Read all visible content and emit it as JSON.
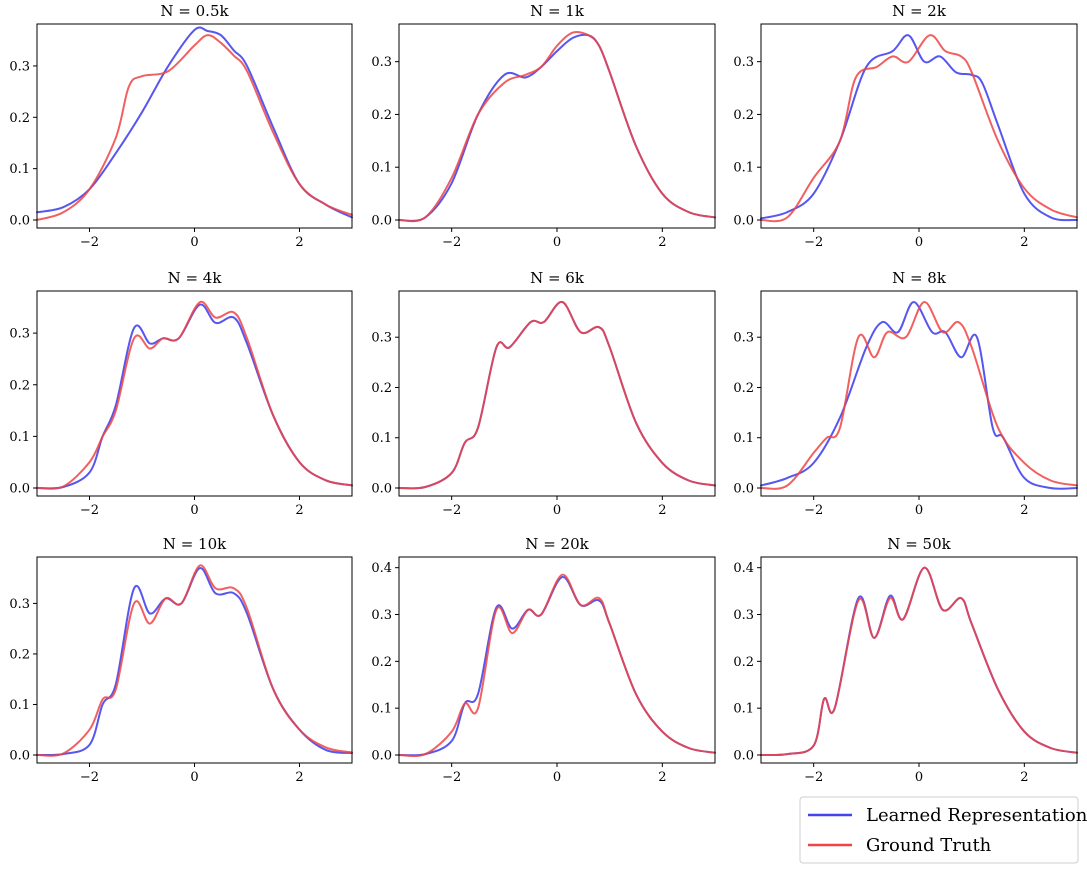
{
  "chart_data": [
    {
      "type": "line",
      "title": "N = 0.5k",
      "xlim": [
        -3,
        3
      ],
      "ylim": [
        0,
        0.37
      ],
      "xticks": [
        -2,
        0,
        2
      ],
      "xtick_labels": [
        "−2",
        "0",
        "2"
      ],
      "yticks": [
        0,
        0.1,
        0.2,
        0.3
      ],
      "ytick_labels": [
        "0.0",
        "0.1",
        "0.2",
        "0.3"
      ],
      "series": [
        {
          "name": "Learned Representation",
          "color": "#4444ee",
          "x": [
            -3,
            -2.5,
            -2,
            -1.5,
            -1,
            -0.5,
            0,
            0.25,
            0.5,
            0.75,
            1,
            1.5,
            2,
            2.5,
            3
          ],
          "y": [
            0.015,
            0.025,
            0.06,
            0.13,
            0.21,
            0.3,
            0.37,
            0.368,
            0.36,
            0.33,
            0.3,
            0.18,
            0.07,
            0.03,
            0.005
          ]
        },
        {
          "name": "Ground Truth",
          "color": "#ee4444",
          "x": [
            -3,
            -2.5,
            -2,
            -1.5,
            -1.25,
            -1,
            -0.5,
            0,
            0.25,
            0.5,
            0.75,
            1,
            1.5,
            2,
            2.5,
            3
          ],
          "y": [
            0.0,
            0.015,
            0.06,
            0.16,
            0.26,
            0.28,
            0.29,
            0.34,
            0.36,
            0.345,
            0.32,
            0.29,
            0.17,
            0.07,
            0.03,
            0.01
          ]
        }
      ]
    },
    {
      "type": "line",
      "title": "N = 1k",
      "xlim": [
        -3,
        3
      ],
      "ylim": [
        0,
        0.36
      ],
      "xticks": [
        -2,
        0,
        2
      ],
      "xtick_labels": [
        "−2",
        "0",
        "2"
      ],
      "yticks": [
        0,
        0.1,
        0.2,
        0.3
      ],
      "ytick_labels": [
        "0.0",
        "0.1",
        "0.2",
        "0.3"
      ],
      "series": [
        {
          "name": "Learned Representation",
          "color": "#4444ee",
          "x": [
            -3,
            -2.5,
            -2,
            -1.5,
            -1,
            -0.6,
            -0.3,
            0,
            0.3,
            0.6,
            0.8,
            1,
            1.5,
            2,
            2.5,
            3
          ],
          "y": [
            0.0,
            0.005,
            0.07,
            0.2,
            0.275,
            0.27,
            0.29,
            0.32,
            0.345,
            0.35,
            0.33,
            0.28,
            0.14,
            0.05,
            0.015,
            0.005
          ]
        },
        {
          "name": "Ground Truth",
          "color": "#ee4444",
          "x": [
            -3,
            -2.5,
            -2,
            -1.5,
            -1,
            -0.6,
            -0.3,
            0,
            0.3,
            0.6,
            0.8,
            1,
            1.5,
            2,
            2.5,
            3
          ],
          "y": [
            0.0,
            0.005,
            0.08,
            0.2,
            0.26,
            0.275,
            0.29,
            0.33,
            0.355,
            0.35,
            0.33,
            0.28,
            0.14,
            0.05,
            0.015,
            0.005
          ]
        }
      ]
    },
    {
      "type": "line",
      "title": "N = 2k",
      "xlim": [
        -3,
        3
      ],
      "ylim": [
        0,
        0.36
      ],
      "xticks": [
        -2,
        0,
        2
      ],
      "xtick_labels": [
        "−2",
        "0",
        "2"
      ],
      "yticks": [
        0,
        0.1,
        0.2,
        0.3
      ],
      "ytick_labels": [
        "0.0",
        "0.1",
        "0.2",
        "0.3"
      ],
      "series": [
        {
          "name": "Learned Representation",
          "color": "#4444ee",
          "x": [
            -3,
            -2.5,
            -2,
            -1.5,
            -1,
            -0.5,
            -0.2,
            0.1,
            0.4,
            0.7,
            1,
            1.2,
            1.5,
            2,
            2.5,
            3
          ],
          "y": [
            0.003,
            0.015,
            0.05,
            0.15,
            0.29,
            0.32,
            0.35,
            0.3,
            0.31,
            0.28,
            0.275,
            0.26,
            0.18,
            0.05,
            0.005,
            0.0
          ]
        },
        {
          "name": "Ground Truth",
          "color": "#ee4444",
          "x": [
            -3,
            -2.5,
            -2,
            -1.5,
            -1.2,
            -0.8,
            -0.5,
            -0.2,
            0.2,
            0.5,
            0.8,
            1,
            1.5,
            2,
            2.5,
            3
          ],
          "y": [
            0.0,
            0.005,
            0.08,
            0.15,
            0.27,
            0.29,
            0.31,
            0.3,
            0.35,
            0.32,
            0.31,
            0.28,
            0.15,
            0.06,
            0.02,
            0.005
          ]
        }
      ]
    },
    {
      "type": "line",
      "title": "N = 4k",
      "xlim": [
        -3,
        3
      ],
      "ylim": [
        0,
        0.37
      ],
      "xticks": [
        -2,
        0,
        2
      ],
      "xtick_labels": [
        "−2",
        "0",
        "2"
      ],
      "yticks": [
        0,
        0.1,
        0.2,
        0.3
      ],
      "ytick_labels": [
        "0.0",
        "0.1",
        "0.2",
        "0.3"
      ],
      "series": [
        {
          "name": "Learned Representation",
          "color": "#4444ee",
          "x": [
            -3,
            -2.5,
            -2,
            -1.75,
            -1.5,
            -1.15,
            -0.85,
            -0.6,
            -0.3,
            0.1,
            0.4,
            0.75,
            1,
            1.5,
            2,
            2.5,
            3
          ],
          "y": [
            0.0,
            0.002,
            0.03,
            0.1,
            0.16,
            0.31,
            0.28,
            0.29,
            0.29,
            0.355,
            0.32,
            0.33,
            0.28,
            0.14,
            0.05,
            0.015,
            0.005
          ]
        },
        {
          "name": "Ground Truth",
          "color": "#ee4444",
          "x": [
            -3,
            -2.5,
            -2,
            -1.75,
            -1.5,
            -1.15,
            -0.85,
            -0.6,
            -0.3,
            0.1,
            0.4,
            0.75,
            1,
            1.5,
            2,
            2.5,
            3
          ],
          "y": [
            0.0,
            0.003,
            0.05,
            0.1,
            0.15,
            0.29,
            0.27,
            0.29,
            0.29,
            0.36,
            0.33,
            0.34,
            0.29,
            0.14,
            0.05,
            0.015,
            0.005
          ]
        }
      ]
    },
    {
      "type": "line",
      "title": "N = 6k",
      "xlim": [
        -3,
        3
      ],
      "ylim": [
        0,
        0.38
      ],
      "xticks": [
        -2,
        0,
        2
      ],
      "xtick_labels": [
        "−2",
        "0",
        "2"
      ],
      "yticks": [
        0,
        0.1,
        0.2,
        0.3
      ],
      "ytick_labels": [
        "0.0",
        "0.1",
        "0.2",
        "0.3"
      ],
      "series": [
        {
          "name": "Learned Representation",
          "color": "#4444ee",
          "x": [
            -3,
            -2.5,
            -2,
            -1.75,
            -1.5,
            -1.15,
            -0.9,
            -0.5,
            -0.25,
            0.1,
            0.45,
            0.8,
            1,
            1.5,
            2,
            2.5,
            3
          ],
          "y": [
            0.0,
            0.002,
            0.03,
            0.09,
            0.12,
            0.28,
            0.28,
            0.33,
            0.33,
            0.37,
            0.31,
            0.32,
            0.28,
            0.13,
            0.05,
            0.015,
            0.005
          ]
        },
        {
          "name": "Ground Truth",
          "color": "#ee4444",
          "x": [
            -3,
            -2.5,
            -2,
            -1.75,
            -1.5,
            -1.15,
            -0.9,
            -0.5,
            -0.25,
            0.1,
            0.45,
            0.8,
            1,
            1.5,
            2,
            2.5,
            3
          ],
          "y": [
            0.0,
            0.002,
            0.03,
            0.09,
            0.12,
            0.28,
            0.28,
            0.33,
            0.33,
            0.37,
            0.31,
            0.32,
            0.28,
            0.13,
            0.05,
            0.015,
            0.005
          ]
        }
      ]
    },
    {
      "type": "line",
      "title": "N = 8k",
      "xlim": [
        -3,
        3
      ],
      "ylim": [
        0,
        0.38
      ],
      "xticks": [
        -2,
        0,
        2
      ],
      "xtick_labels": [
        "−2",
        "0",
        "2"
      ],
      "yticks": [
        0,
        0.1,
        0.2,
        0.3
      ],
      "ytick_labels": [
        "0.0",
        "0.1",
        "0.2",
        "0.3"
      ],
      "series": [
        {
          "name": "Learned Representation",
          "color": "#4444ee",
          "x": [
            -3,
            -2.5,
            -2,
            -1.5,
            -1,
            -0.7,
            -0.4,
            -0.1,
            0.25,
            0.5,
            0.8,
            1.1,
            1.4,
            1.6,
            2,
            2.5,
            3
          ],
          "y": [
            0.005,
            0.02,
            0.05,
            0.14,
            0.28,
            0.33,
            0.31,
            0.37,
            0.31,
            0.31,
            0.26,
            0.3,
            0.12,
            0.1,
            0.02,
            0.0,
            0.0
          ]
        },
        {
          "name": "Ground Truth",
          "color": "#ee4444",
          "x": [
            -3,
            -2.5,
            -2,
            -1.75,
            -1.5,
            -1.15,
            -0.85,
            -0.6,
            -0.25,
            0.1,
            0.45,
            0.75,
            1,
            1.5,
            2,
            2.5,
            3
          ],
          "y": [
            0.0,
            0.005,
            0.07,
            0.1,
            0.12,
            0.3,
            0.26,
            0.31,
            0.3,
            0.37,
            0.31,
            0.33,
            0.28,
            0.12,
            0.05,
            0.015,
            0.005
          ]
        }
      ]
    },
    {
      "type": "line",
      "title": "N = 10k",
      "xlim": [
        -3,
        3
      ],
      "ylim": [
        0,
        0.38
      ],
      "xticks": [
        -2,
        0,
        2
      ],
      "xtick_labels": [
        "−2",
        "0",
        "2"
      ],
      "yticks": [
        0,
        0.1,
        0.2,
        0.3
      ],
      "ytick_labels": [
        "0.0",
        "0.1",
        "0.2",
        "0.3"
      ],
      "series": [
        {
          "name": "Learned Representation",
          "color": "#4444ee",
          "x": [
            -3,
            -2.5,
            -2,
            -1.75,
            -1.5,
            -1.15,
            -0.85,
            -0.55,
            -0.25,
            0.1,
            0.4,
            0.75,
            1,
            1.5,
            2,
            2.5,
            3
          ],
          "y": [
            0.0,
            0.002,
            0.02,
            0.1,
            0.14,
            0.33,
            0.28,
            0.31,
            0.3,
            0.37,
            0.32,
            0.32,
            0.28,
            0.13,
            0.05,
            0.01,
            0.004
          ]
        },
        {
          "name": "Ground Truth",
          "color": "#ee4444",
          "x": [
            -3,
            -2.5,
            -2,
            -1.75,
            -1.5,
            -1.15,
            -0.85,
            -0.55,
            -0.25,
            0.1,
            0.4,
            0.75,
            1,
            1.5,
            2,
            2.5,
            3
          ],
          "y": [
            0.0,
            0.003,
            0.05,
            0.11,
            0.13,
            0.3,
            0.26,
            0.31,
            0.3,
            0.375,
            0.33,
            0.33,
            0.29,
            0.13,
            0.05,
            0.015,
            0.005
          ]
        }
      ]
    },
    {
      "type": "line",
      "title": "N = 20k",
      "xlim": [
        -3,
        3
      ],
      "ylim": [
        0,
        0.41
      ],
      "xticks": [
        -2,
        0,
        2
      ],
      "xtick_labels": [
        "−2",
        "0",
        "2"
      ],
      "yticks": [
        0,
        0.1,
        0.2,
        0.3,
        0.4
      ],
      "ytick_labels": [
        "0.0",
        "0.1",
        "0.2",
        "0.3",
        "0.4"
      ],
      "series": [
        {
          "name": "Learned Representation",
          "color": "#4444ee",
          "x": [
            -3,
            -2.5,
            -2,
            -1.75,
            -1.5,
            -1.15,
            -0.85,
            -0.55,
            -0.3,
            0.1,
            0.45,
            0.8,
            1,
            1.5,
            2,
            2.5,
            3
          ],
          "y": [
            0.0,
            0.002,
            0.03,
            0.11,
            0.13,
            0.315,
            0.27,
            0.31,
            0.3,
            0.38,
            0.32,
            0.33,
            0.28,
            0.13,
            0.05,
            0.015,
            0.005
          ]
        },
        {
          "name": "Ground Truth",
          "color": "#ee4444",
          "x": [
            -3,
            -2.5,
            -2,
            -1.75,
            -1.5,
            -1.15,
            -0.85,
            -0.55,
            -0.3,
            0.1,
            0.45,
            0.8,
            1,
            1.5,
            2,
            2.5,
            3
          ],
          "y": [
            0.0,
            0.002,
            0.05,
            0.11,
            0.1,
            0.31,
            0.26,
            0.31,
            0.3,
            0.385,
            0.32,
            0.335,
            0.28,
            0.13,
            0.05,
            0.015,
            0.005
          ]
        }
      ]
    },
    {
      "type": "line",
      "title": "N = 50k",
      "xlim": [
        -3,
        3
      ],
      "ylim": [
        0,
        0.41
      ],
      "xticks": [
        -2,
        0,
        2
      ],
      "xtick_labels": [
        "−2",
        "0",
        "2"
      ],
      "yticks": [
        0,
        0.1,
        0.2,
        0.3,
        0.4
      ],
      "ytick_labels": [
        "0.0",
        "0.1",
        "0.2",
        "0.3",
        "0.4"
      ],
      "series": [
        {
          "name": "Learned Representation",
          "color": "#4444ee",
          "x": [
            -3,
            -2.5,
            -2,
            -1.8,
            -1.6,
            -1.15,
            -0.85,
            -0.55,
            -0.3,
            0.1,
            0.45,
            0.8,
            1,
            1.5,
            2,
            2.5,
            3
          ],
          "y": [
            0.0,
            0.002,
            0.02,
            0.12,
            0.1,
            0.335,
            0.25,
            0.34,
            0.29,
            0.4,
            0.31,
            0.335,
            0.28,
            0.14,
            0.05,
            0.015,
            0.005
          ]
        },
        {
          "name": "Ground Truth",
          "color": "#ee4444",
          "x": [
            -3,
            -2.5,
            -2,
            -1.8,
            -1.6,
            -1.15,
            -0.85,
            -0.55,
            -0.3,
            0.1,
            0.45,
            0.8,
            1,
            1.5,
            2,
            2.5,
            3
          ],
          "y": [
            0.0,
            0.002,
            0.02,
            0.12,
            0.1,
            0.33,
            0.25,
            0.335,
            0.29,
            0.4,
            0.31,
            0.335,
            0.28,
            0.14,
            0.05,
            0.015,
            0.005
          ]
        }
      ]
    }
  ],
  "legend": {
    "placement": "bottom-right",
    "entries": [
      {
        "label": "Learned Representation",
        "color": "#4444ee"
      },
      {
        "label": "Ground Truth",
        "color": "#ee4444"
      }
    ]
  }
}
